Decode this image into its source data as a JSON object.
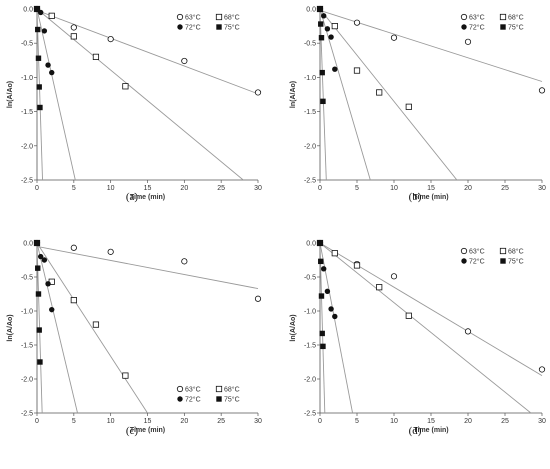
{
  "chart_data": [
    {
      "type": "scatter",
      "panel_label": "(a)",
      "xlabel": "Time (min)",
      "ylabel": "ln(A/Ao)",
      "xlim": [
        0,
        30
      ],
      "ylim": [
        -2.5,
        0.0
      ],
      "xticks": [
        "0",
        "5",
        "10",
        "15",
        "20",
        "25",
        "30"
      ],
      "yticks": [
        "0.0",
        "-0.5",
        "-1.0",
        "-1.5",
        "-2.0",
        "-2.5"
      ],
      "legend_position": "top-right",
      "series": [
        {
          "name": "63°C",
          "marker": "open-circle",
          "points": [
            [
              0,
              0.0
            ],
            [
              5,
              -0.27
            ],
            [
              10,
              -0.44
            ],
            [
              20,
              -0.76
            ],
            [
              30,
              -1.22
            ]
          ],
          "fit": [
            [
              0,
              -0.02
            ],
            [
              30,
              -1.24
            ]
          ]
        },
        {
          "name": "68°C",
          "marker": "open-square",
          "points": [
            [
              0,
              0.0
            ],
            [
              2,
              -0.1
            ],
            [
              5,
              -0.4
            ],
            [
              8,
              -0.7
            ],
            [
              12,
              -1.13
            ]
          ],
          "fit": [
            [
              0,
              0.0
            ],
            [
              28.0,
              -2.5
            ]
          ]
        },
        {
          "name": "72°C",
          "marker": "filled-circle",
          "points": [
            [
              0,
              0.0
            ],
            [
              0.5,
              -0.05
            ],
            [
              1,
              -0.32
            ],
            [
              1.5,
              -0.82
            ],
            [
              2,
              -0.93
            ]
          ],
          "fit": [
            [
              0,
              0.0
            ],
            [
              5.2,
              -2.5
            ]
          ]
        },
        {
          "name": "75°C",
          "marker": "filled-square",
          "points": [
            [
              0,
              0.0
            ],
            [
              0.1,
              -0.3
            ],
            [
              0.2,
              -0.72
            ],
            [
              0.3,
              -1.14
            ],
            [
              0.4,
              -1.44
            ]
          ],
          "fit": [
            [
              0,
              0.0
            ],
            [
              0.75,
              -2.5
            ]
          ]
        }
      ]
    },
    {
      "type": "scatter",
      "panel_label": "(b)",
      "xlabel": "Time (min)",
      "ylabel": "ln(A/Ao)",
      "xlim": [
        0,
        30
      ],
      "ylim": [
        -2.5,
        0.0
      ],
      "xticks": [
        "0",
        "5",
        "10",
        "15",
        "20",
        "25",
        "30"
      ],
      "yticks": [
        "0.0",
        "-0.5",
        "-1.0",
        "-1.5",
        "-2.0",
        "-2.5"
      ],
      "legend_position": "top-right",
      "series": [
        {
          "name": "63°C",
          "marker": "open-circle",
          "points": [
            [
              0,
              0.0
            ],
            [
              5,
              -0.2
            ],
            [
              10,
              -0.42
            ],
            [
              20,
              -0.48
            ],
            [
              30,
              -1.19
            ]
          ],
          "fit": [
            [
              0,
              -0.02
            ],
            [
              30,
              -1.06
            ]
          ]
        },
        {
          "name": "68°C",
          "marker": "open-square",
          "points": [
            [
              0,
              0.0
            ],
            [
              2,
              -0.25
            ],
            [
              5,
              -0.9
            ],
            [
              8,
              -1.22
            ],
            [
              12,
              -1.43
            ]
          ],
          "fit": [
            [
              0,
              0.0
            ],
            [
              18.5,
              -2.5
            ]
          ]
        },
        {
          "name": "72°C",
          "marker": "filled-circle",
          "points": [
            [
              0,
              0.0
            ],
            [
              0.5,
              -0.1
            ],
            [
              1,
              -0.29
            ],
            [
              1.5,
              -0.41
            ],
            [
              2,
              -0.88
            ]
          ],
          "fit": [
            [
              0,
              0.0
            ],
            [
              6.8,
              -2.5
            ]
          ]
        },
        {
          "name": "75°C",
          "marker": "filled-square",
          "points": [
            [
              0,
              0.0
            ],
            [
              0.1,
              -0.22
            ],
            [
              0.2,
              -0.42
            ],
            [
              0.3,
              -0.93
            ],
            [
              0.4,
              -1.35
            ]
          ],
          "fit": [
            [
              0,
              0.0
            ],
            [
              0.85,
              -2.5
            ]
          ]
        }
      ]
    },
    {
      "type": "scatter",
      "panel_label": "(c)",
      "xlabel": "Time (min)",
      "ylabel": "ln(A/Ao)",
      "xlim": [
        0,
        30
      ],
      "ylim": [
        -2.5,
        0.0
      ],
      "xticks": [
        "0",
        "5",
        "10",
        "15",
        "20",
        "25",
        "30"
      ],
      "yticks": [
        "0.0",
        "-0.5",
        "-1.0",
        "-1.5",
        "-2.0",
        "-2.5"
      ],
      "legend_position": "bottom-right",
      "series": [
        {
          "name": "63°C",
          "marker": "open-circle",
          "points": [
            [
              0,
              0.0
            ],
            [
              5,
              -0.07
            ],
            [
              10,
              -0.13
            ],
            [
              20,
              -0.27
            ],
            [
              30,
              -0.82
            ]
          ],
          "fit": [
            [
              0,
              -0.05
            ],
            [
              30,
              -0.67
            ]
          ]
        },
        {
          "name": "68°C",
          "marker": "open-square",
          "points": [
            [
              0,
              0.0
            ],
            [
              2,
              -0.57
            ],
            [
              5,
              -0.84
            ],
            [
              8,
              -1.2
            ],
            [
              12,
              -1.95
            ]
          ],
          "fit": [
            [
              0,
              0.0
            ],
            [
              15.0,
              -2.5
            ]
          ]
        },
        {
          "name": "72°C",
          "marker": "filled-circle",
          "points": [
            [
              0,
              0.0
            ],
            [
              0.5,
              -0.2
            ],
            [
              1,
              -0.25
            ],
            [
              1.5,
              -0.6
            ],
            [
              2,
              -0.98
            ]
          ],
          "fit": [
            [
              0,
              0.0
            ],
            [
              5.5,
              -2.5
            ]
          ]
        },
        {
          "name": "75°C",
          "marker": "filled-square",
          "points": [
            [
              0,
              0.0
            ],
            [
              0.1,
              -0.37
            ],
            [
              0.2,
              -0.75
            ],
            [
              0.3,
              -1.28
            ],
            [
              0.4,
              -1.75
            ]
          ],
          "fit": [
            [
              0,
              0.0
            ],
            [
              0.7,
              -2.5
            ]
          ]
        }
      ]
    },
    {
      "type": "scatter",
      "panel_label": "(d)",
      "xlabel": "Time (min)",
      "ylabel": "ln(A/Ao)",
      "xlim": [
        0,
        30
      ],
      "ylim": [
        -2.5,
        0.0
      ],
      "xticks": [
        "0",
        "5",
        "10",
        "15",
        "20",
        "25",
        "30"
      ],
      "yticks": [
        "0.0",
        "-0.5",
        "-1.0",
        "-1.5",
        "-2.0",
        "-2.5"
      ],
      "legend_position": "top-right",
      "series": [
        {
          "name": "63°C",
          "marker": "open-circle",
          "points": [
            [
              0,
              0.0
            ],
            [
              5,
              -0.31
            ],
            [
              10,
              -0.49
            ],
            [
              20,
              -1.3
            ],
            [
              30,
              -1.86
            ]
          ],
          "fit": [
            [
              0,
              0.0
            ],
            [
              30,
              -1.95
            ]
          ]
        },
        {
          "name": "68°C",
          "marker": "open-square",
          "points": [
            [
              0,
              0.0
            ],
            [
              2,
              -0.15
            ],
            [
              5,
              -0.33
            ],
            [
              8,
              -0.65
            ],
            [
              12,
              -1.07
            ]
          ],
          "fit": [
            [
              0,
              0.0
            ],
            [
              28.5,
              -2.5
            ]
          ]
        },
        {
          "name": "72°C",
          "marker": "filled-circle",
          "points": [
            [
              0,
              0.0
            ],
            [
              0.5,
              -0.38
            ],
            [
              1,
              -0.71
            ],
            [
              1.5,
              -0.97
            ],
            [
              2,
              -1.08
            ]
          ],
          "fit": [
            [
              0,
              0.0
            ],
            [
              4.4,
              -2.5
            ]
          ]
        },
        {
          "name": "75°C",
          "marker": "filled-square",
          "points": [
            [
              0,
              0.0
            ],
            [
              0.1,
              -0.27
            ],
            [
              0.2,
              -0.78
            ],
            [
              0.3,
              -1.33
            ],
            [
              0.4,
              -1.52
            ]
          ],
          "fit": [
            [
              0,
              0.0
            ],
            [
              0.65,
              -2.5
            ]
          ]
        }
      ]
    }
  ]
}
